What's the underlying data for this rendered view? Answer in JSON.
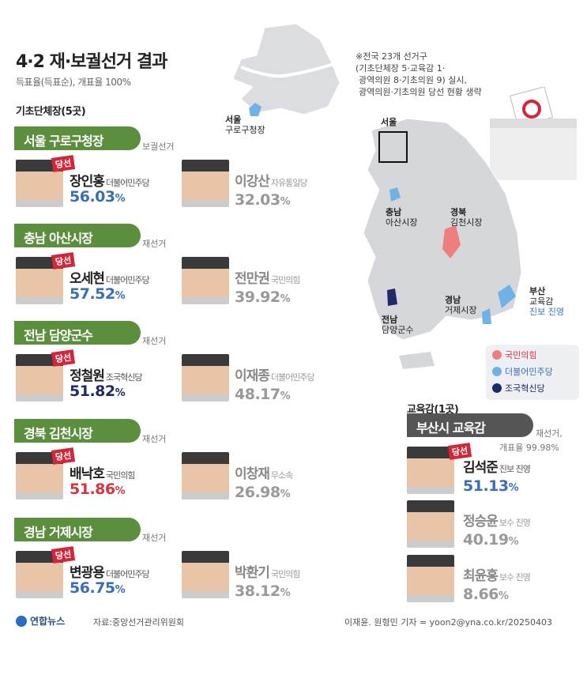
{
  "title": "4·2 재·보궐선거 결과",
  "subtitle": "득표율(득표순), 개표율 100%",
  "note": [
    "※전국 23개 선거구",
    "(기초단체장 5·교육감 1·",
    "광역의원 8·기초의원 9) 실시,",
    "광역의원·기초의원 당선 현황 생략"
  ],
  "colors": {
    "국민의힘": "#ef7f7f",
    "더불어민주당": "#6fb3e6",
    "조국혁신당": "#1e2a6a",
    "header_green": "#5b8f3e",
    "header_gray": "#555555",
    "win_badge": "#d2263b"
  },
  "winner_badge": "당선",
  "section_local": "기초단체장(5곳)",
  "section_edu": "교육감(1곳)",
  "races": [
    {
      "region": "서울 구로구청장",
      "kind": "보궐선거",
      "winner": {
        "name": "장인홍",
        "party": "더불어민주당",
        "pct": "56.03",
        "color": "blue"
      },
      "loser": {
        "name": "이강산",
        "party": "자유통일당",
        "pct": "32.03"
      }
    },
    {
      "region": "충남 아산시장",
      "kind": "재선거",
      "winner": {
        "name": "오세현",
        "party": "더불어민주당",
        "pct": "57.52",
        "color": "blue"
      },
      "loser": {
        "name": "전만권",
        "party": "국민의힘",
        "pct": "39.92"
      }
    },
    {
      "region": "전남 담양군수",
      "kind": "재선거",
      "winner": {
        "name": "정철원",
        "party": "조국혁신당",
        "pct": "51.82",
        "color": "navy"
      },
      "loser": {
        "name": "이재종",
        "party": "더불어민주당",
        "pct": "48.17"
      }
    },
    {
      "region": "경북 김천시장",
      "kind": "재선거",
      "winner": {
        "name": "배낙호",
        "party": "국민의힘",
        "pct": "51.86",
        "color": "red"
      },
      "loser": {
        "name": "이창재",
        "party": "무소속",
        "pct": "26.98"
      }
    },
    {
      "region": "경남 거제시장",
      "kind": "재선거",
      "winner": {
        "name": "변광용",
        "party": "더불어민주당",
        "pct": "56.75",
        "color": "blue"
      },
      "loser": {
        "name": "박환기",
        "party": "국민의힘",
        "pct": "38.12"
      }
    }
  ],
  "edu": {
    "region": "부산시 교육감",
    "kind": "재선거,",
    "count": "개표율 99.98%",
    "candidates": [
      {
        "name": "김석준",
        "camp": "진보 진영",
        "pct": "51.13"
      },
      {
        "name": "정승윤",
        "camp": "보수 진영",
        "pct": "40.19"
      },
      {
        "name": "최윤홍",
        "camp": "보수 진영",
        "pct": "8.66"
      }
    ]
  },
  "pct_unit": "%",
  "map": {
    "seoul_inset": {
      "region": "서울",
      "place": "구로구청장"
    },
    "seoul_box": "서울",
    "labels": [
      {
        "region": "충남",
        "place": "아산시장"
      },
      {
        "region": "경북",
        "place": "김천시장"
      },
      {
        "region": "전남",
        "place": "담양군수"
      },
      {
        "region": "경남",
        "place": "거제시장"
      },
      {
        "region": "부산",
        "place": "교육감",
        "extra": "진보 진영"
      }
    ]
  },
  "legend": [
    "국민의힘",
    "더불어민주당",
    "조국혁신당"
  ],
  "footer": {
    "logo": "연합뉴스",
    "source": "자료:중앙선거관리위원회",
    "credit": "이재윤. 원형민 기자 = yoon2@yna.co.kr/20250403"
  }
}
